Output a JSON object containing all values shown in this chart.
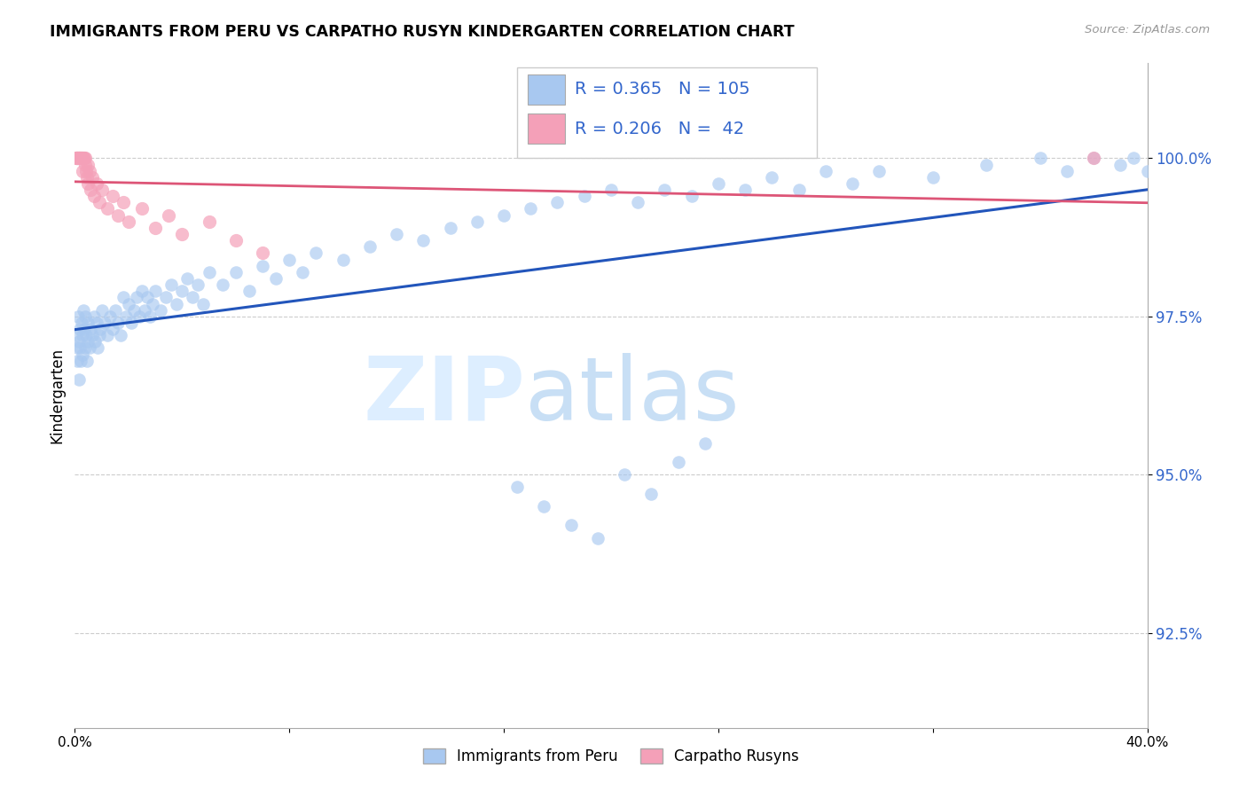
{
  "title": "IMMIGRANTS FROM PERU VS CARPATHO RUSYN KINDERGARTEN CORRELATION CHART",
  "source": "Source: ZipAtlas.com",
  "ylabel": "Kindergarten",
  "xlim": [
    0.0,
    40.0
  ],
  "ylim": [
    91.0,
    101.5
  ],
  "yticks": [
    92.5,
    95.0,
    97.5,
    100.0
  ],
  "ytick_labels": [
    "92.5%",
    "95.0%",
    "97.5%",
    "100.0%"
  ],
  "xticks": [
    0.0,
    8.0,
    16.0,
    24.0,
    32.0,
    40.0
  ],
  "xtick_labels": [
    "0.0%",
    "",
    "",
    "",
    "",
    "40.0%"
  ],
  "peru_R": 0.365,
  "peru_N": 105,
  "rusyn_R": 0.206,
  "rusyn_N": 42,
  "peru_color": "#a8c8f0",
  "rusyn_color": "#f4a0b8",
  "peru_line_color": "#2255bb",
  "rusyn_line_color": "#dd5577",
  "background_color": "#ffffff",
  "watermark_zip": "ZIP",
  "watermark_atlas": "atlas",
  "watermark_color": "#ddeeff",
  "peru_x": [
    0.05,
    0.08,
    0.1,
    0.12,
    0.14,
    0.16,
    0.18,
    0.2,
    0.22,
    0.25,
    0.28,
    0.3,
    0.32,
    0.35,
    0.38,
    0.4,
    0.42,
    0.45,
    0.48,
    0.5,
    0.55,
    0.6,
    0.65,
    0.7,
    0.75,
    0.8,
    0.85,
    0.9,
    0.95,
    1.0,
    1.1,
    1.2,
    1.3,
    1.4,
    1.5,
    1.6,
    1.7,
    1.8,
    1.9,
    2.0,
    2.1,
    2.2,
    2.3,
    2.4,
    2.5,
    2.6,
    2.7,
    2.8,
    2.9,
    3.0,
    3.2,
    3.4,
    3.6,
    3.8,
    4.0,
    4.2,
    4.4,
    4.6,
    4.8,
    5.0,
    5.5,
    6.0,
    6.5,
    7.0,
    7.5,
    8.0,
    8.5,
    9.0,
    10.0,
    11.0,
    12.0,
    13.0,
    14.0,
    15.0,
    16.0,
    17.0,
    18.0,
    19.0,
    20.0,
    21.0,
    22.0,
    23.0,
    24.0,
    25.0,
    26.0,
    27.0,
    28.0,
    29.0,
    30.0,
    32.0,
    34.0,
    36.0,
    37.0,
    38.0,
    39.0,
    39.5,
    40.0,
    16.5,
    17.5,
    18.5,
    19.5,
    20.5,
    21.5,
    22.5,
    23.5
  ],
  "peru_y": [
    97.2,
    97.0,
    96.8,
    97.5,
    97.1,
    96.5,
    97.3,
    97.0,
    96.8,
    97.4,
    97.2,
    96.9,
    97.6,
    97.3,
    97.0,
    97.5,
    97.2,
    96.8,
    97.4,
    97.1,
    97.0,
    97.3,
    97.2,
    97.5,
    97.1,
    97.4,
    97.0,
    97.2,
    97.3,
    97.6,
    97.4,
    97.2,
    97.5,
    97.3,
    97.6,
    97.4,
    97.2,
    97.8,
    97.5,
    97.7,
    97.4,
    97.6,
    97.8,
    97.5,
    97.9,
    97.6,
    97.8,
    97.5,
    97.7,
    97.9,
    97.6,
    97.8,
    98.0,
    97.7,
    97.9,
    98.1,
    97.8,
    98.0,
    97.7,
    98.2,
    98.0,
    98.2,
    97.9,
    98.3,
    98.1,
    98.4,
    98.2,
    98.5,
    98.4,
    98.6,
    98.8,
    98.7,
    98.9,
    99.0,
    99.1,
    99.2,
    99.3,
    99.4,
    99.5,
    99.3,
    99.5,
    99.4,
    99.6,
    99.5,
    99.7,
    99.5,
    99.8,
    99.6,
    99.8,
    99.7,
    99.9,
    100.0,
    99.8,
    100.0,
    99.9,
    100.0,
    99.8,
    94.8,
    94.5,
    94.2,
    94.0,
    95.0,
    94.7,
    95.2,
    95.5
  ],
  "rusyn_x": [
    0.04,
    0.06,
    0.08,
    0.1,
    0.12,
    0.14,
    0.16,
    0.18,
    0.2,
    0.22,
    0.24,
    0.26,
    0.28,
    0.3,
    0.32,
    0.35,
    0.38,
    0.4,
    0.42,
    0.45,
    0.48,
    0.5,
    0.55,
    0.6,
    0.65,
    0.7,
    0.8,
    0.9,
    1.0,
    1.2,
    1.4,
    1.6,
    1.8,
    2.0,
    2.5,
    3.0,
    3.5,
    4.0,
    5.0,
    6.0,
    7.0,
    38.0
  ],
  "rusyn_y": [
    100.0,
    100.0,
    100.0,
    100.0,
    100.0,
    100.0,
    100.0,
    100.0,
    100.0,
    100.0,
    100.0,
    100.0,
    100.0,
    99.8,
    100.0,
    100.0,
    99.9,
    100.0,
    99.8,
    99.7,
    99.9,
    99.6,
    99.8,
    99.5,
    99.7,
    99.4,
    99.6,
    99.3,
    99.5,
    99.2,
    99.4,
    99.1,
    99.3,
    99.0,
    99.2,
    98.9,
    99.1,
    98.8,
    99.0,
    98.7,
    98.5,
    100.0
  ]
}
